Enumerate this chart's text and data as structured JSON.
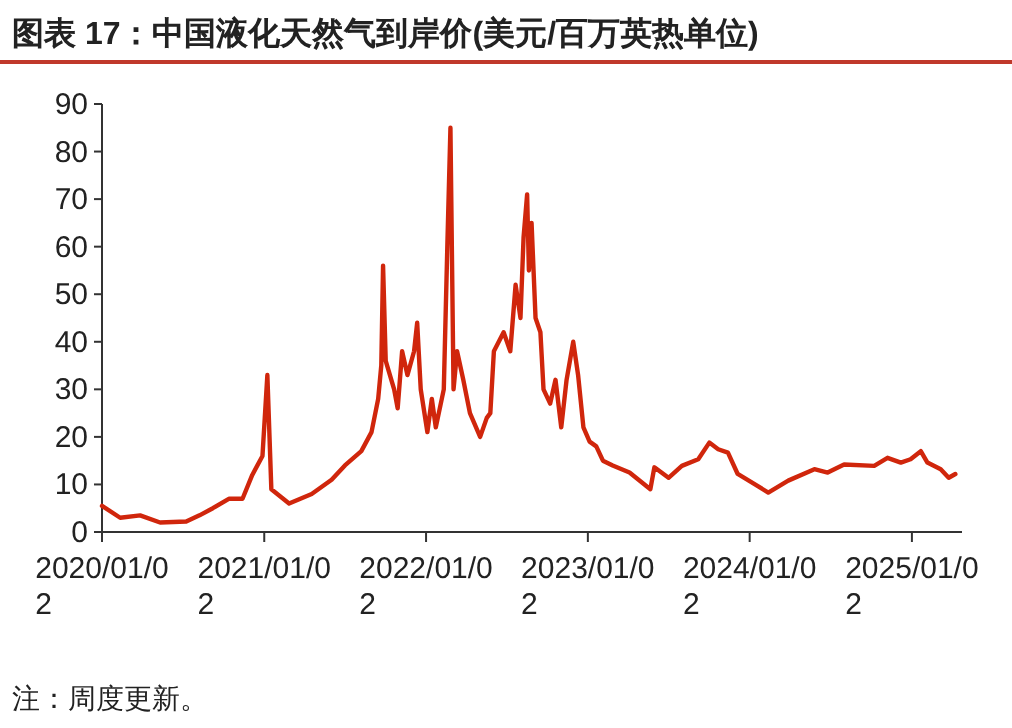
{
  "chart_data": {
    "type": "line",
    "title": "图表 17：中国液化天然气到岸价(美元/百万英热单位)",
    "annotations": [
      "注：周度更新。"
    ],
    "x": [
      "2020-01-02",
      "2020-02-12",
      "2020-03-28",
      "2020-05-12",
      "2020-07-10",
      "2020-08-09",
      "2020-09-08",
      "2020-10-15",
      "2020-11-14",
      "2020-12-06",
      "2020-12-29",
      "2021-01-09",
      "2021-01-18",
      "2021-02-27",
      "2021-04-19",
      "2021-06-03",
      "2021-07-03",
      "2021-08-09",
      "2021-09-01",
      "2021-09-16",
      "2021-09-23",
      "2021-09-27",
      "2021-10-03",
      "2021-10-22",
      "2021-10-30",
      "2021-11-09",
      "2021-11-21",
      "2021-12-06",
      "2021-12-13",
      "2021-12-21",
      "2022-01-05",
      "2022-01-15",
      "2022-01-24",
      "2022-02-11",
      "2022-02-19",
      "2022-02-26",
      "2022-03-05",
      "2022-03-13",
      "2022-03-27",
      "2022-04-11",
      "2022-05-04",
      "2022-05-19",
      "2022-05-27",
      "2022-06-04",
      "2022-06-26",
      "2022-07-11",
      "2022-07-23",
      "2022-08-03",
      "2022-08-10",
      "2022-08-18",
      "2022-08-22",
      "2022-08-28",
      "2022-09-06",
      "2022-09-17",
      "2022-09-24",
      "2022-10-09",
      "2022-10-21",
      "2022-11-03",
      "2022-11-15",
      "2022-11-30",
      "2022-12-11",
      "2022-12-23",
      "2023-01-06",
      "2023-01-21",
      "2023-02-05",
      "2023-02-27",
      "2023-04-06",
      "2023-05-23",
      "2023-06-01",
      "2023-07-03",
      "2023-08-02",
      "2023-09-08",
      "2023-10-03",
      "2023-10-23",
      "2023-11-14",
      "2023-12-06",
      "2024-01-14",
      "2024-02-13",
      "2024-03-29",
      "2024-05-27",
      "2024-06-26",
      "2024-08-02",
      "2024-10-09",
      "2024-11-08",
      "2024-12-08",
      "2024-12-30",
      "2025-01-22",
      "2025-02-06",
      "2025-03-08",
      "2025-03-26",
      "2025-04-10"
    ],
    "series": [
      {
        "color": "#d0260c",
        "values": [
          5.5,
          3,
          3.5,
          2,
          2.2,
          3.5,
          5,
          7,
          7,
          12,
          16,
          33,
          9,
          6,
          8,
          11,
          14,
          17,
          21,
          28,
          35,
          56,
          36,
          30,
          26,
          38,
          33,
          38,
          44,
          30,
          21,
          28,
          22,
          30,
          60,
          85,
          30,
          38,
          32,
          25,
          20,
          24,
          25,
          38,
          42,
          38,
          52,
          45,
          62,
          71,
          55,
          65,
          45,
          42,
          30,
          27,
          32,
          22,
          32,
          40,
          33,
          22,
          19,
          18,
          15,
          14,
          12.5,
          9,
          13.6,
          11.4,
          13.9,
          15.3,
          18.8,
          17.4,
          16.7,
          12.2,
          10,
          8.3,
          10.8,
          13.2,
          12.5,
          14.2,
          13.9,
          15.6,
          14.6,
          15.3,
          17,
          14.6,
          13.2,
          11.4,
          12.2
        ]
      }
    ],
    "xlim": [
      "2020-01-02",
      "2025-04-25"
    ],
    "xticks": [
      {
        "value": "2020-01-02",
        "label": "2020/01/02"
      },
      {
        "value": "2021-01-02",
        "label": "2021/01/02"
      },
      {
        "value": "2022-01-02",
        "label": "2022/01/02"
      },
      {
        "value": "2023-01-02",
        "label": "2023/01/02"
      },
      {
        "value": "2024-01-02",
        "label": "2024/01/02"
      },
      {
        "value": "2025-01-02",
        "label": "2025/01/02"
      }
    ],
    "ylim": [
      0,
      90
    ],
    "yticks": [
      0,
      10,
      20,
      30,
      40,
      50,
      60,
      70,
      80,
      90
    ],
    "grid": false,
    "marker": "none",
    "line_style": "solid"
  }
}
